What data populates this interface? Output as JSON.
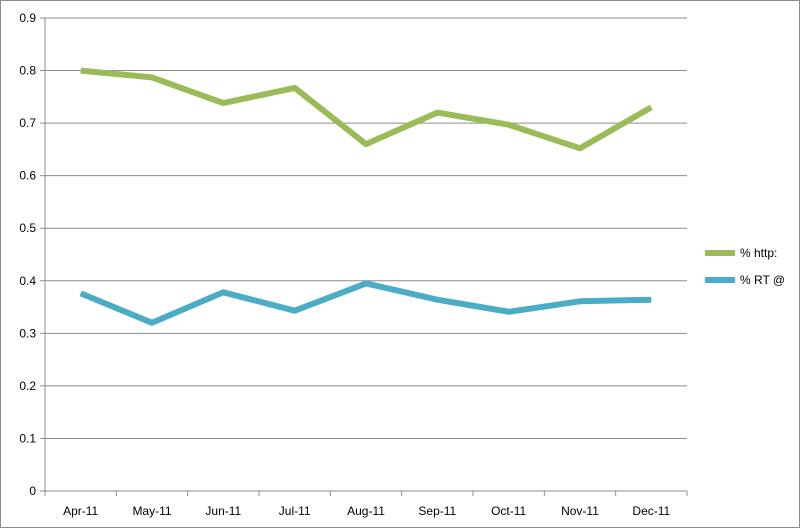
{
  "chart_data": {
    "type": "line",
    "title": "",
    "xlabel": "",
    "ylabel": "",
    "categories": [
      "Apr-11",
      "May-11",
      "Jun-11",
      "Jul-11",
      "Aug-11",
      "Sep-11",
      "Oct-11",
      "Nov-11",
      "Dec-11"
    ],
    "ylim": [
      0,
      0.9
    ],
    "yticks": [
      "0",
      "0.1",
      "0.2",
      "0.3",
      "0.4",
      "0.5",
      "0.6",
      "0.7",
      "0.8",
      "0.9"
    ],
    "grid": true,
    "legend_position": "right",
    "series": [
      {
        "name": "% http:",
        "color": "#9bbb59",
        "values": [
          0.8,
          0.787,
          0.738,
          0.767,
          0.66,
          0.72,
          0.697,
          0.652,
          0.73
        ]
      },
      {
        "name": "% RT @",
        "color": "#4bacc6",
        "values": [
          0.376,
          0.32,
          0.378,
          0.343,
          0.395,
          0.364,
          0.341,
          0.361,
          0.364
        ]
      }
    ]
  }
}
